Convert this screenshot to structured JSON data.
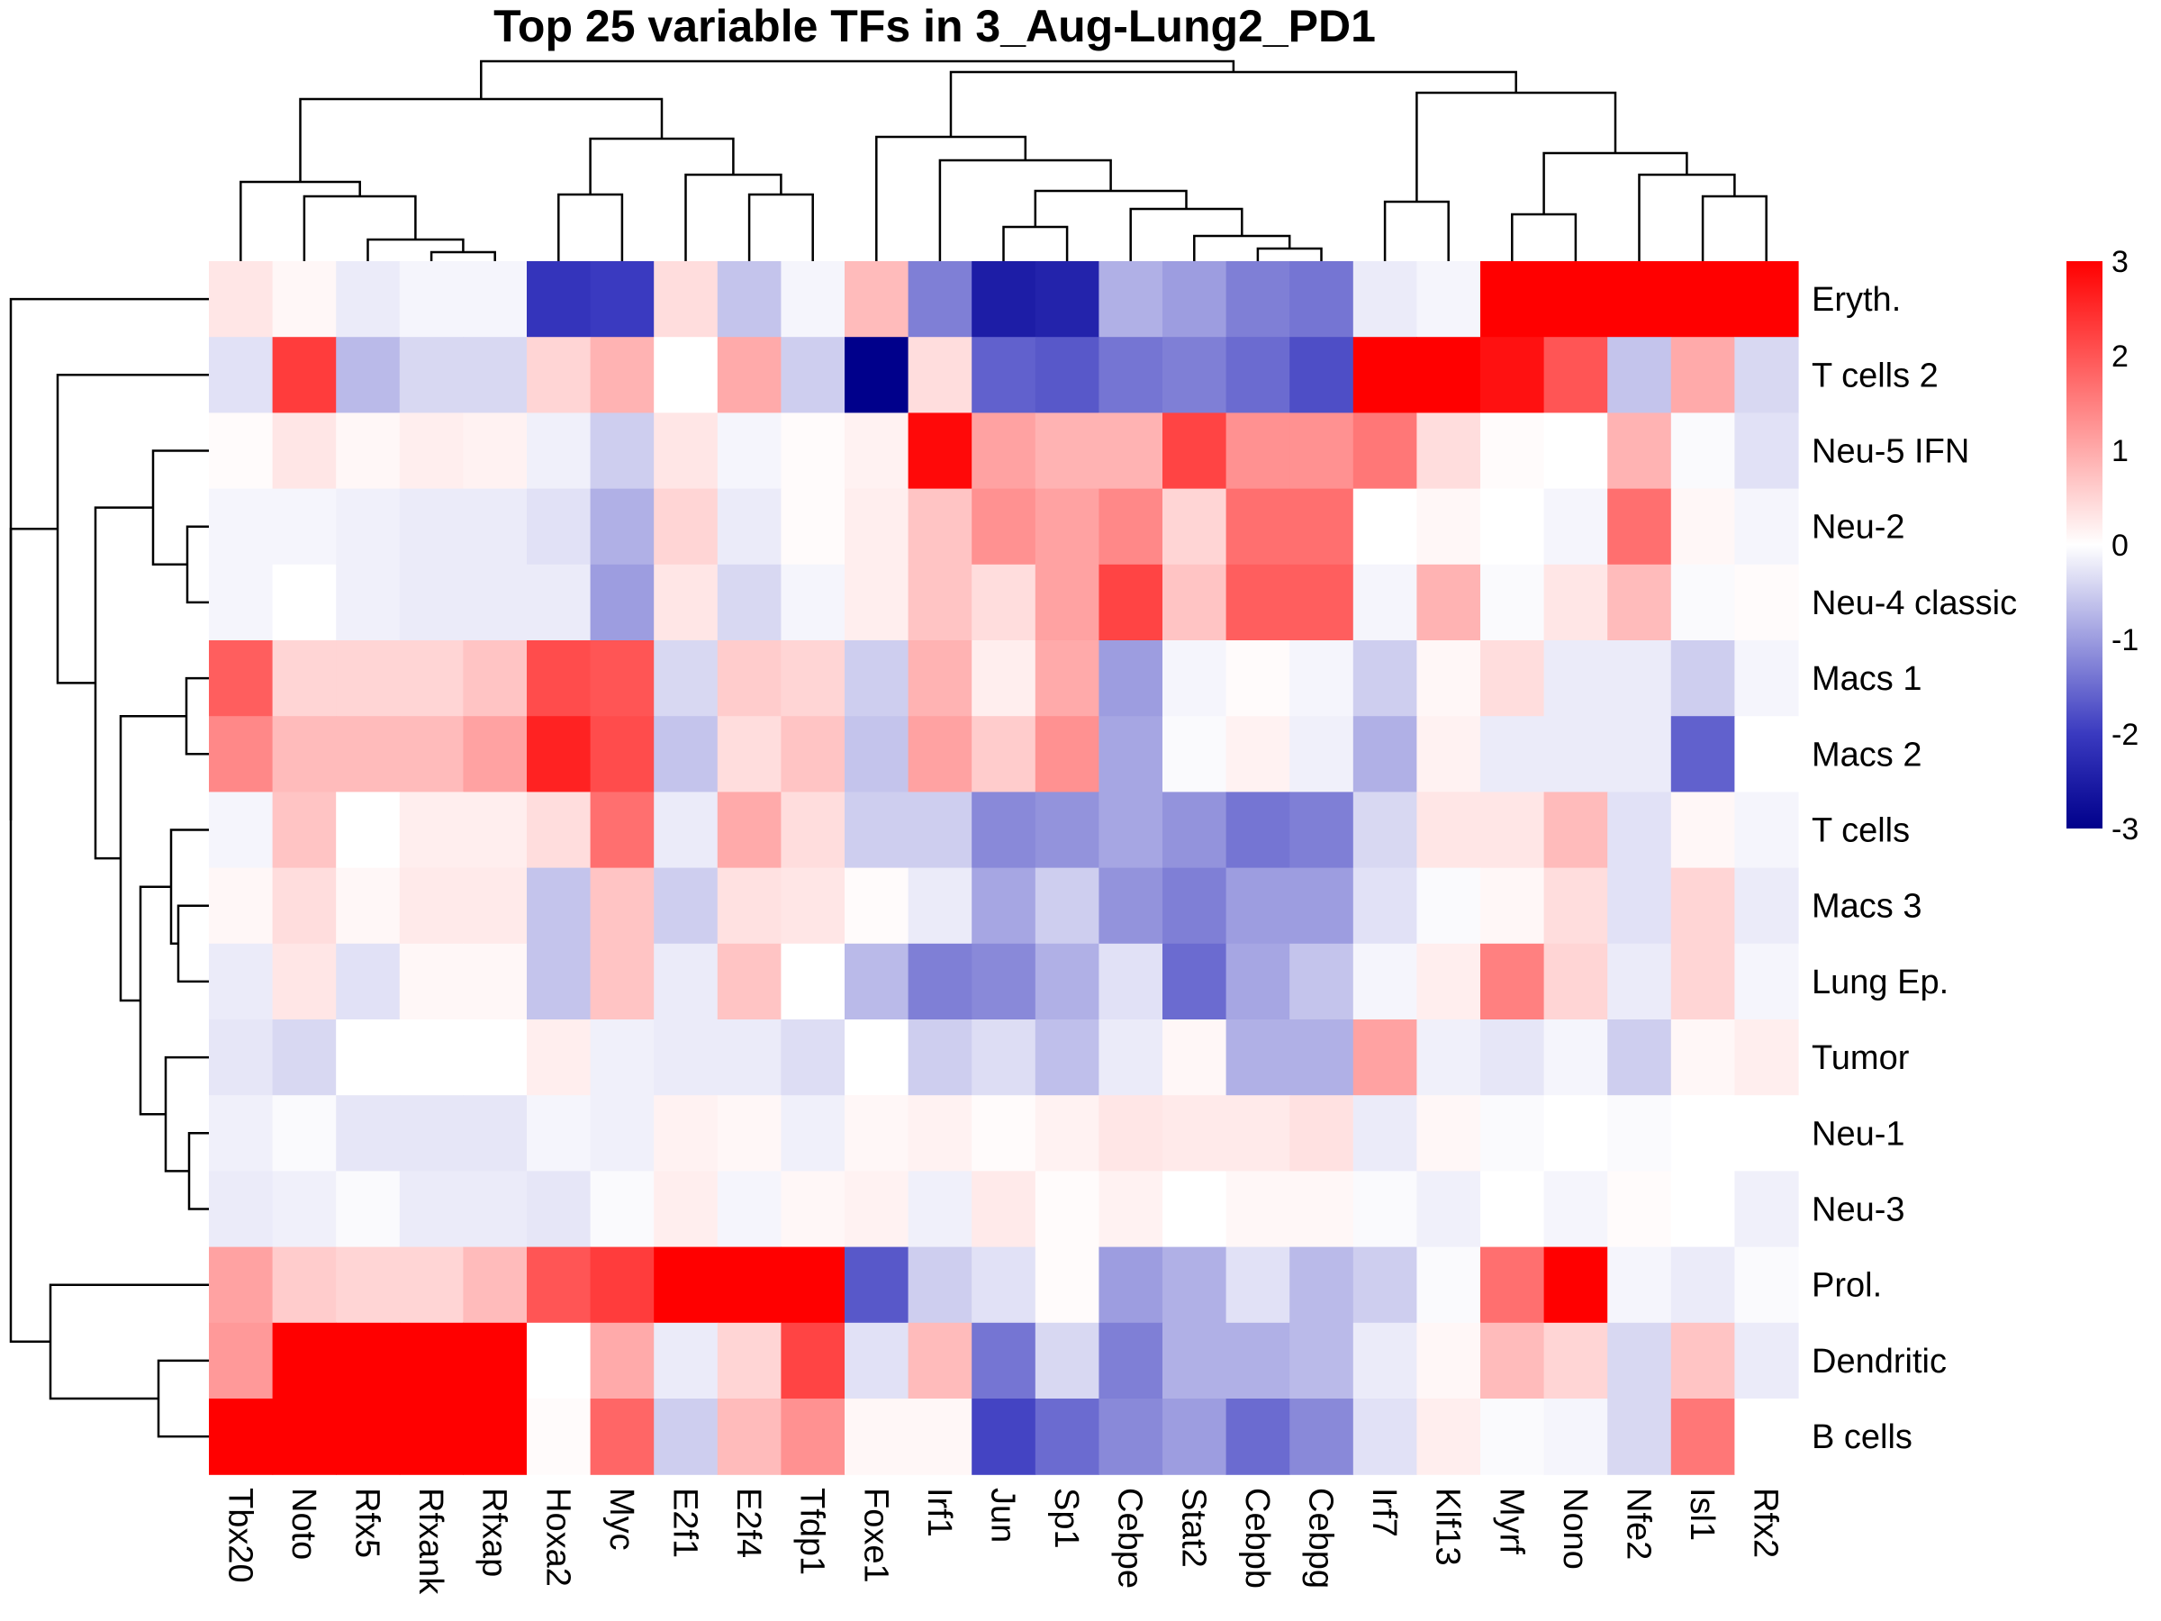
{
  "chart_data": {
    "type": "heatmap",
    "title": "Top 25 variable TFs in 3_Aug-Lung2_PD1",
    "columns": [
      "Tbx20",
      "Noto",
      "Rfx5",
      "Rfxank",
      "Rfxap",
      "Hoxa2",
      "Myc",
      "E2f1",
      "E2f4",
      "Tfdp1",
      "Foxe1",
      "Irf1",
      "Jun",
      "Sp1",
      "Cebpe",
      "Stat2",
      "Cebpb",
      "Cebpg",
      "Irf7",
      "Klf13",
      "Myrf",
      "Nono",
      "Nfe2",
      "Isl1",
      "Rfx2"
    ],
    "rows": [
      "Eryth.",
      "T cells 2",
      "Neu-5 IFN",
      "Neu-2",
      "Neu-4 classic",
      "Macs 1",
      "Macs 2",
      "T cells",
      "Macs 3",
      "Lung Ep.",
      "Tumor",
      "Neu-1",
      "Neu-3",
      "Prol.",
      "Dendritic",
      "B cells"
    ],
    "values": [
      [
        0.3,
        0.1,
        -0.2,
        -0.1,
        -0.1,
        -2.1,
        -2.0,
        0.4,
        -0.6,
        -0.1,
        0.8,
        -1.3,
        -2.5,
        -2.4,
        -0.8,
        -1.0,
        -1.3,
        -1.4,
        -0.2,
        -0.1,
        3,
        3,
        3,
        3,
        3
      ],
      [
        -0.3,
        2.3,
        -0.7,
        -0.4,
        -0.4,
        0.5,
        0.9,
        0.0,
        1.0,
        -0.5,
        -3.0,
        0.4,
        -1.6,
        -1.7,
        -1.4,
        -1.3,
        -1.5,
        -1.8,
        3,
        3,
        2.8,
        2.0,
        -0.6,
        1.0,
        -0.4
      ],
      [
        0.05,
        0.3,
        0.1,
        0.2,
        0.15,
        -0.15,
        -0.5,
        0.3,
        -0.1,
        0.05,
        0.15,
        2.9,
        1.1,
        0.9,
        0.9,
        2.2,
        1.3,
        1.3,
        1.6,
        0.4,
        0.05,
        0.0,
        0.9,
        -0.05,
        -0.3
      ],
      [
        -0.1,
        -0.1,
        -0.15,
        -0.2,
        -0.2,
        -0.3,
        -0.8,
        0.5,
        -0.2,
        0.05,
        0.2,
        0.7,
        1.3,
        1.1,
        1.4,
        0.5,
        1.7,
        1.7,
        0.0,
        0.1,
        0.0,
        -0.1,
        1.7,
        0.1,
        -0.1
      ],
      [
        -0.1,
        0.0,
        -0.15,
        -0.2,
        -0.2,
        -0.2,
        -1.0,
        0.3,
        -0.4,
        -0.1,
        0.2,
        0.7,
        0.4,
        1.1,
        2.2,
        0.7,
        1.9,
        1.9,
        -0.1,
        0.9,
        -0.05,
        0.3,
        0.8,
        -0.05,
        0.05
      ],
      [
        1.9,
        0.5,
        0.5,
        0.5,
        0.7,
        2.1,
        2.0,
        -0.4,
        0.6,
        0.5,
        -0.5,
        0.9,
        0.2,
        1.0,
        -1.0,
        -0.1,
        0.05,
        -0.1,
        -0.5,
        0.1,
        0.4,
        -0.2,
        -0.2,
        -0.5,
        -0.1
      ],
      [
        1.4,
        0.8,
        0.8,
        0.8,
        1.1,
        2.6,
        2.1,
        -0.6,
        0.4,
        0.7,
        -0.6,
        1.1,
        0.6,
        1.3,
        -0.9,
        -0.05,
        0.15,
        -0.15,
        -0.8,
        0.15,
        -0.2,
        -0.2,
        -0.2,
        -1.6,
        0.0
      ],
      [
        -0.1,
        0.7,
        0.0,
        0.2,
        0.2,
        0.4,
        1.7,
        -0.2,
        1.0,
        0.4,
        -0.5,
        -0.5,
        -1.2,
        -1.1,
        -0.9,
        -1.1,
        -1.4,
        -1.3,
        -0.4,
        0.3,
        0.3,
        0.8,
        -0.3,
        0.1,
        -0.1
      ],
      [
        0.1,
        0.4,
        0.1,
        0.25,
        0.25,
        -0.6,
        0.7,
        -0.5,
        0.35,
        0.3,
        0.05,
        -0.2,
        -0.9,
        -0.5,
        -1.1,
        -1.3,
        -1.0,
        -1.0,
        -0.3,
        -0.05,
        0.1,
        0.4,
        -0.3,
        0.5,
        -0.2
      ],
      [
        -0.2,
        0.3,
        -0.3,
        0.1,
        0.1,
        -0.6,
        0.7,
        -0.2,
        0.7,
        0.0,
        -0.7,
        -1.3,
        -1.2,
        -0.8,
        -0.3,
        -1.5,
        -0.9,
        -0.6,
        -0.1,
        0.2,
        1.5,
        0.5,
        -0.2,
        0.5,
        -0.1
      ],
      [
        -0.25,
        -0.4,
        0.0,
        0.0,
        0.0,
        0.2,
        -0.15,
        -0.2,
        -0.2,
        -0.35,
        0.0,
        -0.5,
        -0.35,
        -0.65,
        -0.2,
        0.1,
        -0.8,
        -0.8,
        1.1,
        -0.15,
        -0.25,
        -0.1,
        -0.5,
        0.1,
        0.2
      ],
      [
        -0.15,
        -0.05,
        -0.25,
        -0.25,
        -0.25,
        -0.1,
        -0.15,
        0.15,
        0.1,
        -0.15,
        0.1,
        0.15,
        0.05,
        0.15,
        0.3,
        0.25,
        0.25,
        0.35,
        -0.2,
        0.1,
        -0.05,
        0.0,
        -0.05,
        0.0,
        0.0
      ],
      [
        -0.2,
        -0.15,
        -0.05,
        -0.2,
        -0.2,
        -0.25,
        -0.05,
        0.2,
        -0.1,
        0.1,
        0.15,
        -0.15,
        0.25,
        0.05,
        0.15,
        0.0,
        0.1,
        0.1,
        -0.05,
        -0.15,
        0.0,
        -0.1,
        0.05,
        0.0,
        -0.15
      ],
      [
        1.1,
        0.6,
        0.5,
        0.5,
        0.8,
        2.0,
        2.3,
        3,
        3,
        3,
        -1.7,
        -0.5,
        -0.3,
        0.05,
        -1.0,
        -0.8,
        -0.3,
        -0.7,
        -0.5,
        -0.05,
        1.7,
        3,
        -0.1,
        -0.2,
        -0.05
      ],
      [
        1.2,
        3,
        3,
        3,
        3,
        0.0,
        1.0,
        -0.2,
        0.5,
        2.2,
        -0.3,
        0.8,
        -1.4,
        -0.4,
        -1.3,
        -0.8,
        -0.8,
        -0.7,
        -0.2,
        0.1,
        0.8,
        0.5,
        -0.4,
        0.7,
        -0.2
      ],
      [
        3,
        3,
        3,
        3,
        3,
        0.05,
        1.8,
        -0.5,
        0.8,
        1.3,
        0.1,
        0.1,
        -1.9,
        -1.5,
        -1.2,
        -1.0,
        -1.5,
        -1.2,
        -0.3,
        0.2,
        -0.05,
        -0.1,
        -0.4,
        1.6,
        0.0
      ]
    ],
    "color_scale": {
      "min": -3,
      "max": 3,
      "low": "#00008B",
      "mid_low": "#3A3AC0",
      "mid": "#FFFFFF",
      "high": "#FF0000",
      "ticks": [
        "3",
        "2",
        "1",
        "0",
        "-1",
        "-2",
        "-3"
      ]
    },
    "column_dendrogram": true,
    "row_dendrogram": true,
    "legend_position": "right"
  }
}
